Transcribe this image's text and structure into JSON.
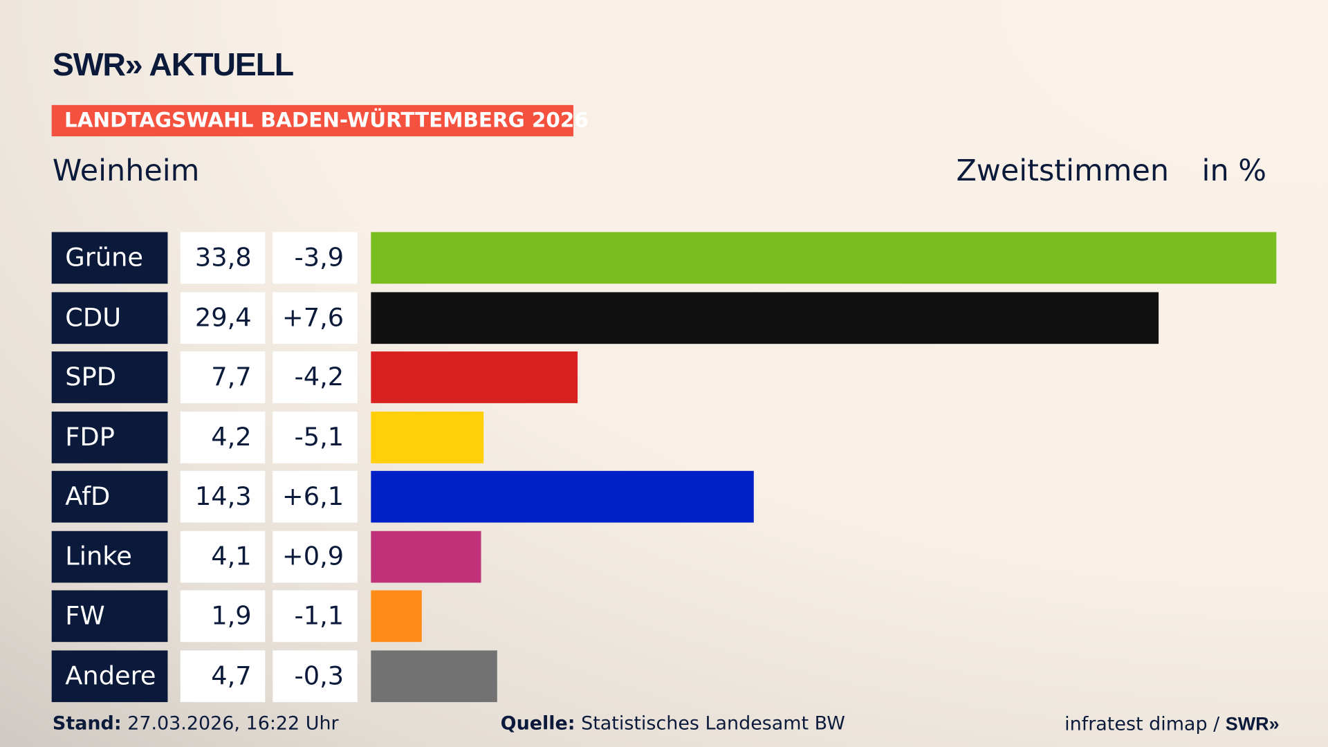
{
  "header": {
    "logo": "SWR» AKTUELL",
    "badge": "LANDTAGSWAHL BADEN-WÜRTTEMBERG 2026",
    "region": "Weinheim",
    "measure": "Zweitstimmen",
    "unit": "in %"
  },
  "chart_data": {
    "type": "bar",
    "orientation": "horizontal",
    "xlim": [
      0,
      33.8
    ],
    "categories": [
      "Grüne",
      "CDU",
      "SPD",
      "FDP",
      "AfD",
      "Linke",
      "FW",
      "Andere"
    ],
    "values": [
      33.8,
      29.4,
      7.7,
      4.2,
      14.3,
      4.1,
      1.9,
      4.7
    ],
    "value_labels": [
      "33,8",
      "29,4",
      "7,7",
      "4,2",
      "14,3",
      "4,1",
      "1,9",
      "4,7"
    ],
    "diff_labels": [
      "-3,9",
      "+7,6",
      "-4,2",
      "-5,1",
      "+6,1",
      "+0,9",
      "-1,1",
      "-0,3"
    ],
    "colors": [
      "#7abd1e",
      "#111111",
      "#d82020",
      "#ffcf0a",
      "#0020c8",
      "#bf3178",
      "#ff8c18",
      "#727272"
    ]
  },
  "footer": {
    "stand_label": "Stand:",
    "stand": "27.03.2026, 16:22 Uhr",
    "source_label": "Quelle:",
    "source": "Statistisches Landesamt BW",
    "credit": "infratest dimap / ",
    "credit_logo": "SWR»"
  }
}
